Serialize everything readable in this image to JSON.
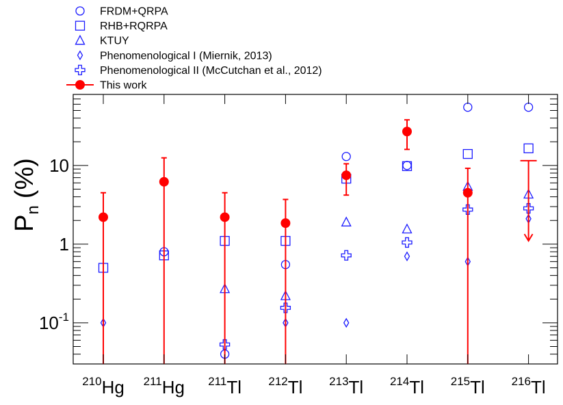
{
  "chart_data": {
    "type": "scatter",
    "title": "",
    "xlabel": "",
    "ylabel": "P",
    "ylabel_subscript": "n",
    "ylabel_unit": "(%)",
    "yscale": "log",
    "ylim": [
      0.03,
      80
    ],
    "yticks": [
      {
        "value": 0.1,
        "base": "10",
        "exp": "-1"
      },
      {
        "value": 1,
        "base": "1",
        "exp": ""
      },
      {
        "value": 10,
        "base": "10",
        "exp": ""
      }
    ],
    "categories": [
      {
        "mass": "210",
        "element": "Hg"
      },
      {
        "mass": "211",
        "element": "Hg"
      },
      {
        "mass": "211",
        "element": "Tl"
      },
      {
        "mass": "212",
        "element": "Tl"
      },
      {
        "mass": "213",
        "element": "Tl"
      },
      {
        "mass": "214",
        "element": "Tl"
      },
      {
        "mass": "215",
        "element": "Tl"
      },
      {
        "mass": "216",
        "element": "Tl"
      }
    ],
    "legend_position": "top-left",
    "series": [
      {
        "name": "FRDM+QRPA",
        "marker": "circle",
        "color": "#1a1aff",
        "values": [
          null,
          0.8,
          0.04,
          0.55,
          13,
          10,
          55,
          55
        ]
      },
      {
        "name": "RHB+RQRPA",
        "marker": "square",
        "color": "#1a1aff",
        "values": [
          0.5,
          0.72,
          1.1,
          1.1,
          6.8,
          9.8,
          14,
          16.5
        ]
      },
      {
        "name": "KTUY",
        "marker": "triangle",
        "color": "#1a1aff",
        "values": [
          null,
          null,
          0.27,
          0.22,
          1.9,
          1.55,
          5.4,
          4.3
        ]
      },
      {
        "name": "Phenomenological I (Miernik, 2013)",
        "marker": "diamond",
        "color": "#1a1aff",
        "values": [
          0.1,
          null,
          null,
          0.1,
          0.1,
          0.7,
          0.6,
          2.1
        ]
      },
      {
        "name": "Phenomenological II (McCutchan et al., 2012)",
        "marker": "cross",
        "color": "#1a1aff",
        "values": [
          null,
          null,
          0.053,
          0.155,
          0.72,
          1.05,
          2.75,
          2.85
        ]
      },
      {
        "name": "This work",
        "marker": "filled-circle",
        "color": "#ff0000",
        "values": [
          2.2,
          6.2,
          2.2,
          1.85,
          7.5,
          27,
          4.5,
          null
        ],
        "err_low": [
          0.03,
          0.03,
          0.03,
          0.03,
          4.2,
          16,
          0.03,
          null
        ],
        "err_high": [
          4.5,
          12.5,
          4.5,
          3.7,
          10.5,
          38,
          9.2,
          null
        ],
        "upper_limit": {
          "category_index": 7,
          "value": 11.5,
          "arrow_to": 1.1
        }
      }
    ]
  },
  "colors": {
    "theory": "#1a1aff",
    "measurement": "#ff0000",
    "axis": "#000000"
  }
}
